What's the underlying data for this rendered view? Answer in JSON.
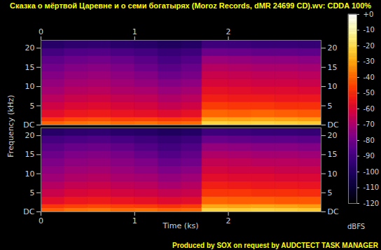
{
  "chart_data": {
    "type": "heatmap",
    "title": "Сказка о мёртвой Царевне и о семи богатырях (Moroz Records, dMR 24699 CD).wv: CDDA 100%",
    "caption": "Produced by SOX on request by AUDCTECT TASK MANAGER",
    "x_label": "Time (ks)",
    "y_label": "Frequency (kHz)",
    "xlim": [
      0,
      2.99
    ],
    "xticks": [
      0,
      1,
      2
    ],
    "ylim": [
      0,
      22.05
    ],
    "yticks": [
      {
        "value": 0,
        "label": "DC"
      },
      5,
      10,
      15,
      20
    ],
    "x_edges": [
      0,
      0.25,
      0.5,
      0.75,
      1.0,
      1.25,
      1.5,
      1.72,
      2.0,
      2.25,
      2.5,
      2.75,
      2.99
    ],
    "y_edges": [
      0,
      1,
      2,
      4,
      6,
      8,
      10,
      12,
      14,
      16,
      18,
      20,
      22.05
    ],
    "cells": [
      [
        [
          -40,
          -48,
          -58,
          -63,
          -67,
          -71,
          -74,
          -77,
          -80,
          -84,
          -90,
          -98
        ],
        [
          -38,
          -45,
          -55,
          -60,
          -64,
          -68,
          -71,
          -74,
          -77,
          -81,
          -87,
          -96
        ],
        [
          -37,
          -44,
          -54,
          -59,
          -63,
          -67,
          -70,
          -73,
          -76,
          -80,
          -86,
          -95
        ],
        [
          -39,
          -46,
          -56,
          -61,
          -65,
          -69,
          -72,
          -75,
          -78,
          -82,
          -88,
          -97
        ],
        [
          -38,
          -46,
          -57,
          -62,
          -66,
          -70,
          -74,
          -77,
          -81,
          -85,
          -90,
          -98
        ],
        [
          -40,
          -48,
          -59,
          -65,
          -69,
          -73,
          -77,
          -81,
          -85,
          -89,
          -93,
          -100
        ],
        [
          -39,
          -47,
          -57,
          -63,
          -67,
          -71,
          -75,
          -79,
          -82,
          -86,
          -91,
          -99
        ],
        [
          -22,
          -30,
          -40,
          -47,
          -53,
          -57,
          -61,
          -64,
          -68,
          -73,
          -81,
          -91
        ],
        [
          -23,
          -31,
          -41,
          -48,
          -54,
          -58,
          -62,
          -65,
          -69,
          -74,
          -82,
          -92
        ],
        [
          -22,
          -30,
          -40,
          -48,
          -54,
          -59,
          -63,
          -66,
          -70,
          -75,
          -83,
          -93
        ],
        [
          -23,
          -31,
          -41,
          -49,
          -55,
          -59,
          -63,
          -66,
          -70,
          -75,
          -83,
          -93
        ],
        [
          -24,
          -32,
          -42,
          -49,
          -55,
          -60,
          -64,
          -67,
          -71,
          -76,
          -84,
          -94
        ]
      ],
      [
        [
          -41,
          -48,
          -58,
          -64,
          -68,
          -72,
          -75,
          -78,
          -81,
          -85,
          -90,
          -98
        ],
        [
          -38,
          -46,
          -55,
          -61,
          -65,
          -69,
          -72,
          -75,
          -78,
          -82,
          -88,
          -96
        ],
        [
          -37,
          -45,
          -54,
          -60,
          -64,
          -68,
          -71,
          -74,
          -77,
          -81,
          -87,
          -95
        ],
        [
          -39,
          -46,
          -56,
          -62,
          -66,
          -70,
          -73,
          -76,
          -79,
          -83,
          -89,
          -97
        ],
        [
          -38,
          -47,
          -57,
          -63,
          -67,
          -71,
          -75,
          -78,
          -82,
          -86,
          -91,
          -98
        ],
        [
          -40,
          -49,
          -59,
          -65,
          -70,
          -74,
          -78,
          -82,
          -86,
          -90,
          -94,
          -100
        ],
        [
          -39,
          -47,
          -58,
          -64,
          -68,
          -72,
          -76,
          -80,
          -83,
          -87,
          -92,
          -99
        ],
        [
          -22,
          -30,
          -40,
          -48,
          -53,
          -58,
          -62,
          -65,
          -69,
          -74,
          -82,
          -91
        ],
        [
          -23,
          -31,
          -41,
          -48,
          -54,
          -59,
          -63,
          -66,
          -70,
          -75,
          -83,
          -92
        ],
        [
          -22,
          -30,
          -41,
          -49,
          -55,
          -59,
          -63,
          -67,
          -71,
          -76,
          -84,
          -93
        ],
        [
          -23,
          -31,
          -42,
          -49,
          -55,
          -60,
          -64,
          -67,
          -71,
          -76,
          -84,
          -93
        ],
        [
          -24,
          -32,
          -42,
          -50,
          -56,
          -60,
          -64,
          -68,
          -72,
          -77,
          -85,
          -94
        ]
      ]
    ],
    "colorbar": {
      "label": "dBFS",
      "range": [
        -120,
        0
      ],
      "ticks": [
        {
          "value": 0,
          "label": "+0"
        },
        -10,
        -20,
        -30,
        -40,
        -50,
        -60,
        -70,
        -80,
        -90,
        -100,
        -110,
        -120
      ]
    }
  }
}
